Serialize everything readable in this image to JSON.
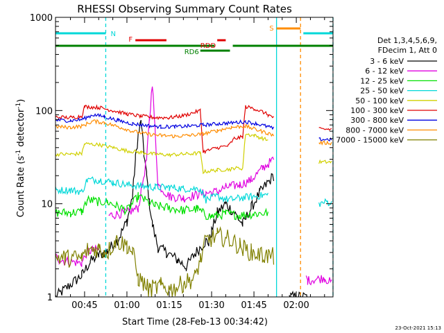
{
  "chart_data": {
    "type": "line",
    "title": "RHESSI Observing Summary Count Rates",
    "xlabel": "Start Time (28-Feb-13 00:34:42)",
    "ylabel_main": "Count Rate (s",
    "ylabel_sup1": "-1",
    "ylabel_mid": " detector",
    "ylabel_sup2": "-1",
    "ylabel_end": ")",
    "yscale": "log",
    "ylim": [
      1,
      1000
    ],
    "xlim_min": [
      34.7,
      133
    ],
    "xticks_min": [
      45,
      60,
      75,
      90,
      105,
      120
    ],
    "xtick_labels": [
      "00:45",
      "01:00",
      "01:15",
      "01:30",
      "01:45",
      "02:00"
    ],
    "ytick_labels": [
      "1",
      "10",
      "100",
      "1000"
    ],
    "ytick_values": [
      1,
      10,
      100,
      1000
    ],
    "legend_header": [
      "Det 1,3,4,5,6,9,",
      "FDecim 1, Att 0"
    ],
    "legend_placement": "right",
    "timestamp": "23-Oct-2021 15:13",
    "colors": {
      "cyan": "#00d8d8",
      "red": "#e00000",
      "green": "#008000",
      "orange": "#ff8c00"
    },
    "flags": [
      {
        "label": "N",
        "color": "#00d8d8",
        "segments": [
          [
            34.7,
            52.5
          ],
          [
            122.5,
            133
          ]
        ],
        "yrow": "N"
      },
      {
        "label": "S",
        "color": "#ff8c00",
        "segments": [
          [
            113,
            121.5
          ]
        ],
        "yrow": "S"
      },
      {
        "label": "F",
        "color": "#e00000",
        "segments": [
          [
            63,
            74
          ]
        ],
        "yrow": "F"
      },
      {
        "label": "RDD",
        "color": "#e00000",
        "segments": [
          [
            92,
            95
          ]
        ],
        "yrow": "RDD"
      },
      {
        "label": "RDD",
        "color": "#008000",
        "segments": [
          [
            34.7,
            91
          ],
          [
            97.5,
            133
          ]
        ],
        "yrow": "RDDG"
      },
      {
        "label": "RD6",
        "color": "#008000",
        "segments": [
          [
            86,
            96.5
          ]
        ],
        "yrow": "RD6"
      }
    ],
    "vlines": [
      {
        "x": 52.5,
        "color": "#00d8d8",
        "style": "dashed"
      },
      {
        "x": 113,
        "color": "#00d8d8",
        "style": "solid"
      },
      {
        "x": 121.5,
        "color": "#ff8c00",
        "style": "dashed"
      },
      {
        "x": 133,
        "color": "#00d8d8",
        "style": "dashed"
      }
    ],
    "series": [
      {
        "name": "3 - 6 keV",
        "color": "#000000",
        "noise": 0.06,
        "points": [
          [
            34.7,
            1
          ],
          [
            44,
            1.7
          ],
          [
            47,
            2.4
          ],
          [
            50,
            2.8
          ],
          [
            53,
            3.1
          ],
          [
            57,
            4.2
          ],
          [
            60,
            6.5
          ],
          [
            62,
            12
          ],
          [
            63,
            30
          ],
          [
            64,
            55
          ],
          [
            65,
            75
          ],
          [
            66,
            35
          ],
          [
            67,
            20
          ],
          [
            68,
            10
          ],
          [
            69,
            6
          ],
          [
            71,
            3.4
          ],
          [
            74,
            3
          ],
          [
            78,
            2.5
          ],
          [
            81,
            2.1
          ],
          [
            84,
            2.9
          ],
          [
            88,
            4
          ],
          [
            89,
            3.8
          ],
          [
            90,
            5
          ],
          [
            92,
            8
          ],
          [
            95,
            10
          ],
          [
            98,
            8
          ],
          [
            101,
            6
          ],
          [
            104,
            9
          ],
          [
            107,
            13
          ],
          [
            110,
            17
          ],
          [
            112,
            20
          ],
          [
            113,
            null
          ],
          [
            117.5,
            1
          ],
          [
            118,
            1
          ],
          [
            124,
            1
          ]
        ]
      },
      {
        "name": "6 - 12 keV",
        "color": "#e000e0",
        "noise": 0.05,
        "points": [
          [
            34.7,
            2.7
          ],
          [
            36,
            2.5
          ],
          [
            44,
            2.3
          ],
          [
            46,
            3.1
          ],
          [
            50,
            3.2
          ],
          [
            53,
            null
          ],
          [
            53.5,
            7.5
          ],
          [
            60,
            8
          ],
          [
            64,
            9
          ],
          [
            67,
            30
          ],
          [
            68,
            80
          ],
          [
            69,
            200
          ],
          [
            70,
            60
          ],
          [
            71,
            16
          ],
          [
            75,
            12
          ],
          [
            80,
            11.5
          ],
          [
            85,
            12.5
          ],
          [
            88,
            13
          ],
          [
            92,
            13.5
          ],
          [
            95,
            15
          ],
          [
            100,
            16
          ],
          [
            104,
            18
          ],
          [
            108,
            24
          ],
          [
            112,
            30
          ],
          [
            113,
            null
          ],
          [
            123.5,
            1.6
          ],
          [
            124,
            1.5
          ],
          [
            130,
            1.6
          ],
          [
            132.5,
            1.4
          ]
        ]
      },
      {
        "name": "12 - 25 keV",
        "color": "#00e000",
        "noise": 0.05,
        "points": [
          [
            34.7,
            8
          ],
          [
            40,
            8
          ],
          [
            44,
            8.2
          ],
          [
            46,
            11
          ],
          [
            50,
            10.5
          ],
          [
            53,
            10.5
          ],
          [
            56,
            9.5
          ],
          [
            60,
            8.5
          ],
          [
            62,
            10
          ],
          [
            64,
            12
          ],
          [
            66,
            11
          ],
          [
            70,
            9.5
          ],
          [
            75,
            9
          ],
          [
            80,
            8.5
          ],
          [
            85,
            8.8
          ],
          [
            88,
            7.5
          ],
          [
            90,
            7.3
          ],
          [
            95,
            7.8
          ],
          [
            100,
            7.5
          ],
          [
            105,
            7.8
          ],
          [
            110,
            8
          ],
          [
            113,
            null
          ]
        ]
      },
      {
        "name": "25 - 50 keV",
        "color": "#00d8d8",
        "noise": 0.04,
        "points": [
          [
            34.7,
            14
          ],
          [
            40,
            14
          ],
          [
            44,
            13.5
          ],
          [
            46,
            18
          ],
          [
            50,
            18
          ],
          [
            55,
            17
          ],
          [
            60,
            16
          ],
          [
            65,
            15.5
          ],
          [
            70,
            15
          ],
          [
            75,
            15
          ],
          [
            80,
            14.5
          ],
          [
            86,
            14.5
          ],
          [
            88,
            11
          ],
          [
            92,
            12
          ],
          [
            96,
            11
          ],
          [
            100,
            11.5
          ],
          [
            105,
            12
          ],
          [
            110,
            12.5
          ],
          [
            113,
            null
          ],
          [
            128,
            10
          ],
          [
            131,
            10.5
          ],
          [
            132.5,
            10
          ]
        ]
      },
      {
        "name": "50 - 100 keV",
        "color": "#d0d000",
        "noise": 0.02,
        "points": [
          [
            34.7,
            34
          ],
          [
            40,
            34
          ],
          [
            44,
            34.5
          ],
          [
            45,
            44
          ],
          [
            50,
            43
          ],
          [
            55,
            40
          ],
          [
            60,
            37
          ],
          [
            65,
            35.5
          ],
          [
            70,
            34
          ],
          [
            75,
            33.5
          ],
          [
            80,
            34
          ],
          [
            86,
            35
          ],
          [
            87,
            22
          ],
          [
            92,
            23
          ],
          [
            97,
            23.5
          ],
          [
            98,
            24
          ],
          [
            101,
            24
          ],
          [
            102,
            56
          ],
          [
            105,
            54
          ],
          [
            110,
            48
          ],
          [
            113,
            null
          ],
          [
            128,
            28
          ],
          [
            132.5,
            28
          ]
        ]
      },
      {
        "name": "100 - 300 keV",
        "color": "#e00000",
        "noise": 0.02,
        "points": [
          [
            34.7,
            85
          ],
          [
            40,
            84
          ],
          [
            44,
            87
          ],
          [
            45,
            110
          ],
          [
            50,
            108
          ],
          [
            55,
            100
          ],
          [
            60,
            92
          ],
          [
            65,
            87
          ],
          [
            70,
            84
          ],
          [
            75,
            84
          ],
          [
            80,
            88
          ],
          [
            86,
            100
          ],
          [
            87,
            36
          ],
          [
            92,
            40
          ],
          [
            96,
            42
          ],
          [
            98,
            50
          ],
          [
            101,
            52
          ],
          [
            102,
            110
          ],
          [
            105,
            105
          ],
          [
            108,
            97
          ],
          [
            110,
            90
          ],
          [
            112,
            84
          ],
          [
            113,
            null
          ],
          [
            118,
            null
          ],
          [
            121.5,
            null
          ],
          [
            128,
            63
          ],
          [
            132.5,
            63
          ]
        ]
      },
      {
        "name": "300 - 800 keV",
        "color": "#0000e0",
        "noise": 0.02,
        "points": [
          [
            34.7,
            79
          ],
          [
            40,
            78
          ],
          [
            44,
            80
          ],
          [
            48,
            90
          ],
          [
            52,
            86
          ],
          [
            57,
            78
          ],
          [
            62,
            72
          ],
          [
            67,
            69
          ],
          [
            72,
            67
          ],
          [
            77,
            67
          ],
          [
            82,
            68
          ],
          [
            87,
            70
          ],
          [
            92,
            72
          ],
          [
            97,
            74
          ],
          [
            102,
            76
          ],
          [
            106,
            72
          ],
          [
            110,
            67
          ],
          [
            112,
            64
          ],
          [
            113,
            null
          ],
          [
            128,
            49
          ],
          [
            132.5,
            49
          ]
        ]
      },
      {
        "name": "800 - 7000 keV",
        "color": "#ff8c00",
        "noise": 0.02,
        "points": [
          [
            34.7,
            67
          ],
          [
            40,
            66
          ],
          [
            44,
            68
          ],
          [
            48,
            77
          ],
          [
            52,
            74
          ],
          [
            57,
            67
          ],
          [
            62,
            60
          ],
          [
            67,
            56
          ],
          [
            72,
            54
          ],
          [
            77,
            53
          ],
          [
            82,
            54
          ],
          [
            87,
            56
          ],
          [
            92,
            61
          ],
          [
            97,
            66
          ],
          [
            102,
            68
          ],
          [
            106,
            62
          ],
          [
            110,
            57
          ],
          [
            112,
            54
          ],
          [
            113,
            null
          ],
          [
            128,
            45
          ],
          [
            132.5,
            45
          ]
        ]
      },
      {
        "name": "7000 - 15000 keV",
        "color": "#808000",
        "noise": 0.1,
        "points": [
          [
            34.7,
            2.7
          ],
          [
            38,
            2.6
          ],
          [
            44,
            2.6
          ],
          [
            46,
            3.2
          ],
          [
            50,
            3.3
          ],
          [
            53,
            3
          ],
          [
            56,
            4
          ],
          [
            58,
            3.8
          ],
          [
            60,
            3.6
          ],
          [
            62,
            3
          ],
          [
            64,
            1.6
          ],
          [
            68,
            1.2
          ],
          [
            72,
            1.3
          ],
          [
            76,
            1.2
          ],
          [
            80,
            1.4
          ],
          [
            84,
            1.6
          ],
          [
            86,
            2.5
          ],
          [
            88,
            4
          ],
          [
            92,
            4.5
          ],
          [
            96,
            4.2
          ],
          [
            100,
            3.5
          ],
          [
            104,
            3
          ],
          [
            108,
            2.8
          ],
          [
            112,
            2.7
          ],
          [
            113,
            null
          ]
        ]
      }
    ]
  }
}
